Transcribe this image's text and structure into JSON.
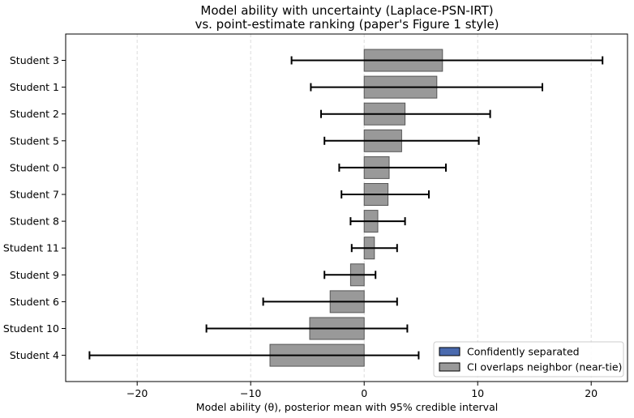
{
  "chart_data": {
    "type": "bar",
    "orientation": "horizontal",
    "title": "Model ability with uncertainty (Laplace-PSN-IRT)",
    "subtitle": "vs. point-estimate ranking (paper's Figure 1 style)",
    "xlabel": "Model ability (θ), posterior mean with 95% credible interval",
    "ylabel": "",
    "xlim": [
      -26.3,
      23.2
    ],
    "xticks": [
      -20,
      -10,
      0,
      10,
      20
    ],
    "xtick_labels": [
      "−20",
      "−10",
      "0",
      "10",
      "20"
    ],
    "grid": "vertical dashed",
    "legend_position": "lower-right",
    "legend": [
      {
        "label": "Confidently separated",
        "color": "#4a6aae"
      },
      {
        "label": "CI overlaps neighbor (near-tie)",
        "color": "#999999"
      }
    ],
    "categories": [
      "Student 3",
      "Student 1",
      "Student 2",
      "Student 5",
      "Student 0",
      "Student 7",
      "Student 8",
      "Student 11",
      "Student 9",
      "Student 6",
      "Student 10",
      "Student 4"
    ],
    "values": [
      6.9,
      6.4,
      3.6,
      3.3,
      2.2,
      2.1,
      1.2,
      0.9,
      -1.2,
      -3.0,
      -4.8,
      -8.3
    ],
    "ci_lower": [
      -6.4,
      -4.7,
      -3.8,
      -3.5,
      -2.2,
      -2.0,
      -1.2,
      -1.1,
      -3.5,
      -8.9,
      -13.9,
      -24.2
    ],
    "ci_upper": [
      21.0,
      15.7,
      11.1,
      10.1,
      7.2,
      5.7,
      3.6,
      2.9,
      1.0,
      2.9,
      3.8,
      4.8
    ],
    "bar_colors": [
      "#999999",
      "#999999",
      "#999999",
      "#999999",
      "#999999",
      "#999999",
      "#999999",
      "#999999",
      "#999999",
      "#999999",
      "#999999",
      "#999999"
    ]
  }
}
